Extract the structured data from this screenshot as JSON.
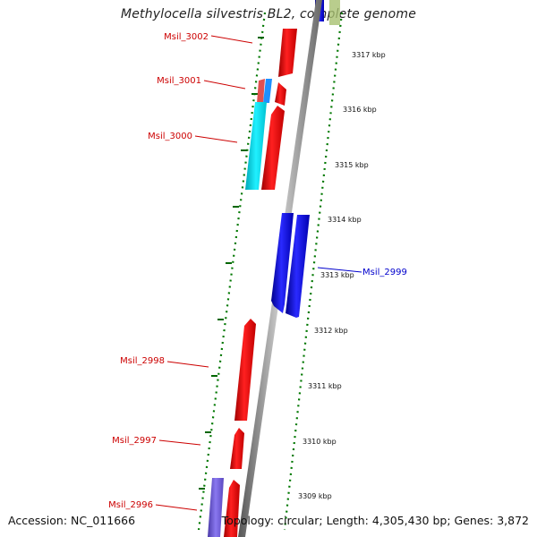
{
  "map": {
    "title": "Methylocella silvestris BL2, complete genome",
    "accession_text": "Accession: NC_011666",
    "summary_text": "Topology: circular; Length: 4,305,430 bp; Genes: 3,872"
  },
  "colors": {
    "forward_gene": "#ff0000",
    "reverse_gene": "#0000ff",
    "rna_gene": "#00ffff",
    "other_gene": "#7b68ee",
    "label_red": "#cc0000",
    "label_blue": "#0000cc",
    "tick": "#007700",
    "backbone": "#888888"
  },
  "scale_ticks": [
    {
      "label": "3317 kbp"
    },
    {
      "label": "3316 kbp"
    },
    {
      "label": "3315 kbp"
    },
    {
      "label": "3314 kbp"
    },
    {
      "label": "3313 kbp"
    },
    {
      "label": "3312 kbp"
    },
    {
      "label": "3311 kbp"
    },
    {
      "label": "3310 kbp"
    },
    {
      "label": "3309 kbp"
    }
  ],
  "gene_labels": [
    {
      "name": "Msil_3002",
      "strand": "forward"
    },
    {
      "name": "Msil_3001",
      "strand": "forward"
    },
    {
      "name": "Msil_3000",
      "strand": "forward"
    },
    {
      "name": "Msil_2999",
      "strand": "reverse"
    },
    {
      "name": "Msil_2998",
      "strand": "forward"
    },
    {
      "name": "Msil_2997",
      "strand": "forward"
    },
    {
      "name": "Msil_2996",
      "strand": "forward"
    }
  ]
}
